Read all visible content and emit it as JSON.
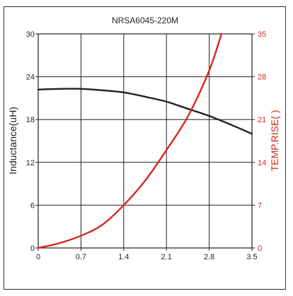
{
  "chart_data": {
    "type": "line",
    "title": "NRSA6045-220M",
    "xlabel": "",
    "ylabel": "Inductance(uH)",
    "y2label": "TEMP.RISE(   )",
    "xlim": [
      0,
      3.5
    ],
    "ylim": [
      0,
      30
    ],
    "y2lim": [
      0,
      35
    ],
    "x_ticks": [
      "0",
      "0.7",
      "1.4",
      "2.1",
      "2.8",
      "3.5"
    ],
    "y_ticks": [
      "0",
      "6",
      "12",
      "18",
      "24",
      "30"
    ],
    "y2_ticks": [
      "0",
      "7",
      "14",
      "21",
      "28",
      "35"
    ],
    "grid": true,
    "series": [
      {
        "axis": "left",
        "color": "#231f20",
        "x": [
          0,
          0.35,
          0.7,
          1.05,
          1.4,
          1.75,
          2.1,
          2.45,
          2.8,
          3.15,
          3.5
        ],
        "values": [
          22.2,
          22.3,
          22.3,
          22.1,
          21.8,
          21.2,
          20.5,
          19.5,
          18.5,
          17.3,
          16.0
        ]
      },
      {
        "axis": "right",
        "color": "#d8251f",
        "x": [
          0,
          0.35,
          0.7,
          1.05,
          1.4,
          1.75,
          2.1,
          2.45,
          2.8,
          3.0
        ],
        "values": [
          0,
          0.8,
          2.0,
          3.8,
          7.0,
          11.0,
          16.0,
          21.5,
          29.0,
          35.0
        ]
      }
    ]
  },
  "colors": {
    "frame": "#333333",
    "grid": "#231f20",
    "left_axis": "#231f20",
    "right_axis": "#d8251f"
  }
}
